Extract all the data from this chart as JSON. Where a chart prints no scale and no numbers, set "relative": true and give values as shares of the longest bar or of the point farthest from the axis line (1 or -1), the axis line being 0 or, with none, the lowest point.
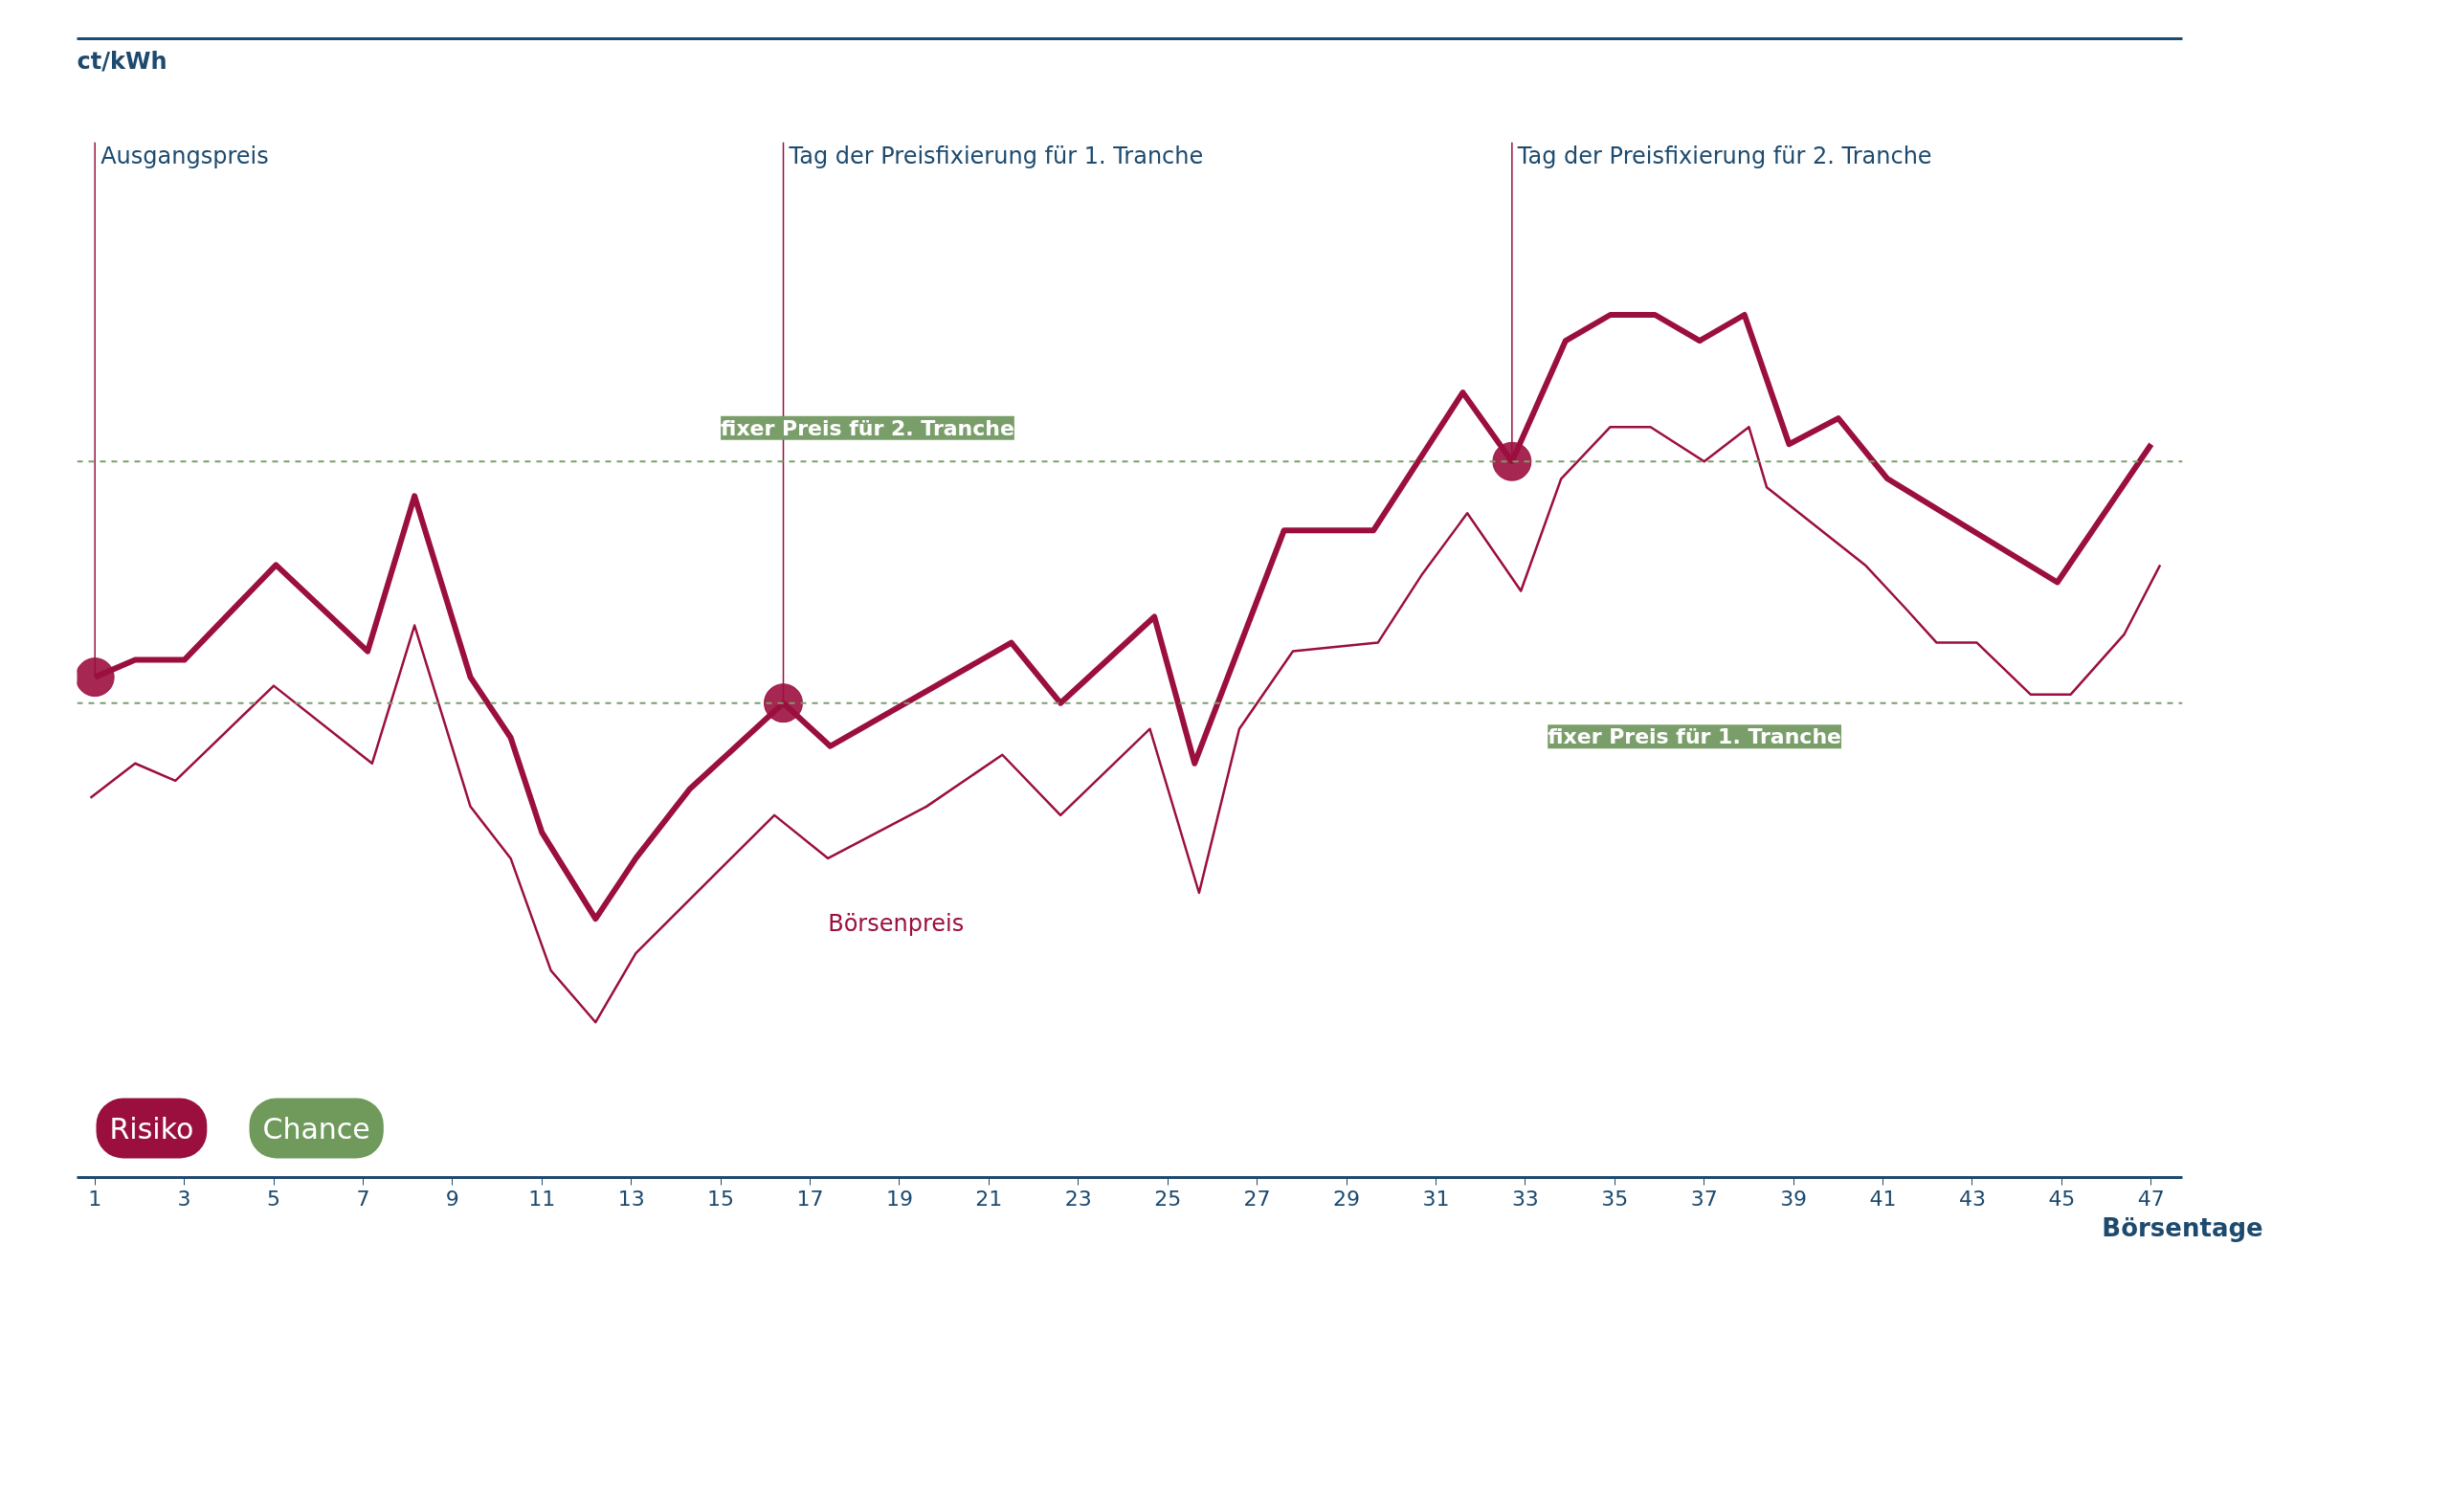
{
  "chart_data": {
    "type": "line",
    "relative": true,
    "xlabel": "Börsentage",
    "xlim": [
      0.6,
      47.7
    ],
    "xticks": [
      1,
      3,
      5,
      7,
      9,
      11,
      13,
      15,
      17,
      19,
      21,
      23,
      25,
      27,
      29,
      31,
      33,
      35,
      37,
      39,
      41,
      43,
      45,
      47
    ],
    "line_style": "solid",
    "series": [
      {
        "color": "#9b0f3f",
        "x": [
          1,
          1.9,
          3,
          5.05,
          7.1,
          8.15,
          9.4,
          10.3,
          11,
          12.2,
          13.1,
          14.3,
          16.4,
          17.45,
          21.5,
          22.6,
          24.7,
          25.6,
          27.6,
          29.6,
          31.6,
          32.7,
          33.9,
          34.9,
          35.9,
          36.9,
          37.9,
          38.9,
          40,
          41.1,
          44.9,
          47
        ],
        "values": [
          0.58,
          0.6,
          0.6,
          0.71,
          0.61,
          0.79,
          0.58,
          0.51,
          0.4,
          0.3,
          0.37,
          0.45,
          0.55,
          0.5,
          0.62,
          0.55,
          0.65,
          0.48,
          0.75,
          0.75,
          0.91,
          0.83,
          0.97,
          1,
          1,
          0.97,
          1,
          0.85,
          0.88,
          0.81,
          0.69,
          0.85
        ]
      },
      {
        "name": "Börsenpreis",
        "color": "#9b0f3f",
        "type": "line",
        "x": [
          0.9,
          1.9,
          2.8,
          5,
          7.2,
          8.15,
          9.4,
          10.3,
          11.2,
          12.2,
          13.1,
          16.2,
          17.4,
          19.6,
          21.3,
          22.6,
          24.6,
          25.7,
          26.6,
          27.8,
          29.7,
          30.7,
          31.7,
          32.9,
          33.8,
          34.9,
          35.8,
          37,
          38,
          38.4,
          40.6,
          41.5,
          42.2,
          43.1,
          44.3,
          45.2,
          46.4,
          47.2
        ],
        "values": [
          0.44,
          0.48,
          0.46,
          0.57,
          0.48,
          0.64,
          0.43,
          0.37,
          0.24,
          0.18,
          0.26,
          0.42,
          0.37,
          0.43,
          0.49,
          0.42,
          0.52,
          0.33,
          0.52,
          0.61,
          0.62,
          0.7,
          0.77,
          0.68,
          0.81,
          0.87,
          0.87,
          0.83,
          0.87,
          0.8,
          0.71,
          0.66,
          0.62,
          0.62,
          0.56,
          0.56,
          0.63,
          0.71
        ]
      }
    ],
    "ref_lines": [
      {
        "axis": "y",
        "value": 0.55,
        "label": "fixer Preis für 1. Tranche",
        "color": "#7a9e6a",
        "line_style": "dashed"
      },
      {
        "axis": "y",
        "value": 0.83,
        "label": "fixer Preis für 2. Tranche",
        "color": "#7a9e6a",
        "line_style": "dashed"
      }
    ],
    "annotations": [
      "ct/kWh",
      {
        "text": "Ausgangspreis",
        "x": 1,
        "y": 0.58
      },
      {
        "text": "Tag der Preisfixierung für 1. Tranche",
        "x": 16.4,
        "y": 0.55
      },
      {
        "text": "Tag der Preisfixierung für 2. Tranche",
        "x": 32.7,
        "y": 0.83
      },
      "Risiko",
      "Chance"
    ]
  }
}
